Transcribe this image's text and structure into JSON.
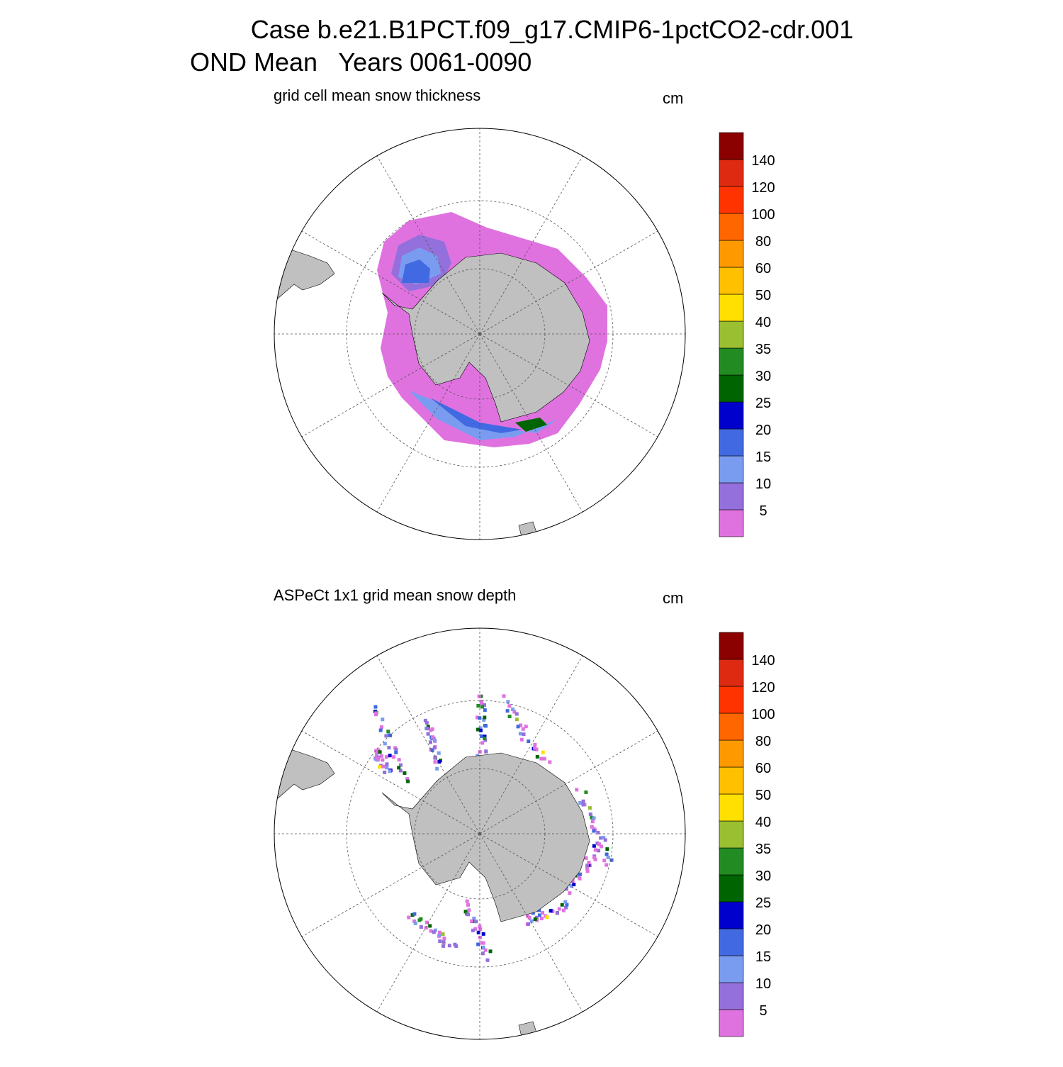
{
  "title": [
    "Case b.e21.B1PCT.f09_g17.CMIP6-1pctCO2-cdr.001",
    "OND Mean   Years 0061-0090"
  ],
  "panels": [
    {
      "subtitle": "grid cell mean snow thickness",
      "units": "cm",
      "colorbar": {
        "levels": [
          5,
          10,
          15,
          20,
          25,
          30,
          35,
          40,
          50,
          60,
          80,
          100,
          120,
          140
        ],
        "colors": [
          "#e072e0",
          "#9370db",
          "#7a9cf0",
          "#4169e1",
          "#0000cd",
          "#006400",
          "#228b22",
          "#9abf30",
          "#ffe000",
          "#ffc000",
          "#ff9900",
          "#ff6600",
          "#ff3300",
          "#dd2a10",
          "#8b0000"
        ]
      }
    },
    {
      "subtitle": "ASPeCt 1x1 grid mean snow depth",
      "units": "cm",
      "colorbar": {
        "levels": [
          5,
          10,
          15,
          20,
          25,
          30,
          35,
          40,
          50,
          60,
          80,
          100,
          120,
          140
        ],
        "colors": [
          "#e072e0",
          "#9370db",
          "#7a9cf0",
          "#4169e1",
          "#0000cd",
          "#006400",
          "#228b22",
          "#9abf30",
          "#ffe000",
          "#ffc000",
          "#ff9900",
          "#ff6600",
          "#ff3300",
          "#dd2a10",
          "#8b0000"
        ]
      }
    }
  ]
}
